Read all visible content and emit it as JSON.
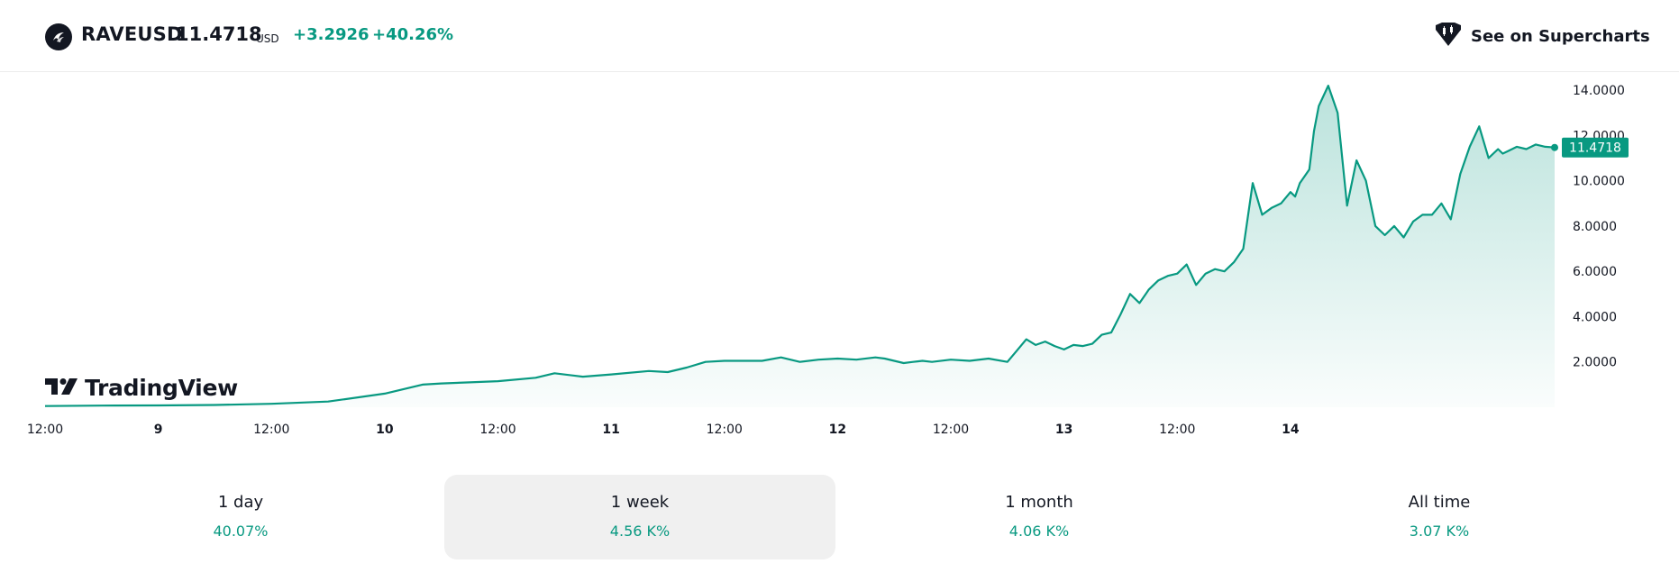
{
  "header": {
    "symbol": "RAVEUSD",
    "price": "11.4718",
    "currency": "USD",
    "change": "+3.2926",
    "change_percent": "+40.26%",
    "supercharts_label": "See on Supercharts",
    "accent_color": "#089981"
  },
  "branding": {
    "logo_text": "TradingView"
  },
  "stats": [
    {
      "label": "1 day",
      "value": "40.07%",
      "active": false
    },
    {
      "label": "1 week",
      "value": "4.56 K%",
      "active": true
    },
    {
      "label": "1 month",
      "value": "4.06 K%",
      "active": false
    },
    {
      "label": "All time",
      "value": "3.07 K%",
      "active": false
    }
  ],
  "chart_data": {
    "type": "area",
    "title": "",
    "xlabel": "",
    "ylabel": "",
    "x_tick_labels": [
      "12:00",
      "9",
      "12:00",
      "10",
      "12:00",
      "11",
      "12:00",
      "12",
      "12:00",
      "13",
      "12:00",
      "14"
    ],
    "y_tick_labels": [
      "2.0000",
      "4.0000",
      "6.0000",
      "8.0000",
      "10.0000",
      "12.0000",
      "14.0000"
    ],
    "ylim": [
      0,
      14.8
    ],
    "xlim": [
      -12,
      148
    ],
    "x_unit": "hours from 9 00:00",
    "last_value_label": "11.4718",
    "line_color": "#089981",
    "series": [
      {
        "x": [
          -12,
          -6,
          0,
          6,
          12,
          18,
          24,
          28,
          30,
          33,
          36,
          40,
          42,
          45,
          48,
          52,
          54,
          56,
          58,
          60,
          64,
          66,
          68,
          70,
          72,
          74,
          76,
          77,
          78,
          79,
          80,
          81,
          82,
          84,
          86,
          88,
          90,
          91,
          92,
          93,
          94,
          95,
          96,
          97,
          98,
          99,
          100,
          101,
          102,
          103,
          104,
          105,
          106,
          107,
          108,
          109,
          110,
          111,
          112,
          113,
          114,
          115,
          116,
          117,
          118,
          119,
          120,
          120.5,
          121,
          121.5,
          122,
          122.5,
          123,
          124,
          125,
          126,
          127,
          128,
          129,
          130,
          131,
          132,
          133,
          134,
          135,
          136,
          137,
          138,
          139,
          140,
          141,
          142,
          142.5,
          143,
          144,
          145,
          146,
          147,
          148
        ],
        "y": [
          0.05,
          0.07,
          0.08,
          0.1,
          0.15,
          0.25,
          0.6,
          1.0,
          1.05,
          1.1,
          1.15,
          1.3,
          1.5,
          1.35,
          1.45,
          1.6,
          1.55,
          1.75,
          2.0,
          2.05,
          2.05,
          2.2,
          2.0,
          2.1,
          2.15,
          2.1,
          2.2,
          2.15,
          2.05,
          1.95,
          2.0,
          2.05,
          2.0,
          2.1,
          2.05,
          2.15,
          2.0,
          2.5,
          3.0,
          2.75,
          2.9,
          2.7,
          2.55,
          2.75,
          2.7,
          2.8,
          3.2,
          3.3,
          4.1,
          5.0,
          4.6,
          5.2,
          5.6,
          5.8,
          5.9,
          6.3,
          5.4,
          5.9,
          6.1,
          6.0,
          6.4,
          7.0,
          9.9,
          8.5,
          8.8,
          9.0,
          9.5,
          9.3,
          9.9,
          10.2,
          10.5,
          12.2,
          13.3,
          14.2,
          13.0,
          8.9,
          10.9,
          10.0,
          8.0,
          7.6,
          8.0,
          7.5,
          8.2,
          8.5,
          8.5,
          9.0,
          8.3,
          10.3,
          11.5,
          12.4,
          11.0,
          11.4,
          11.2,
          11.3,
          11.5,
          11.4,
          11.6,
          11.5,
          11.4718
        ]
      }
    ]
  }
}
